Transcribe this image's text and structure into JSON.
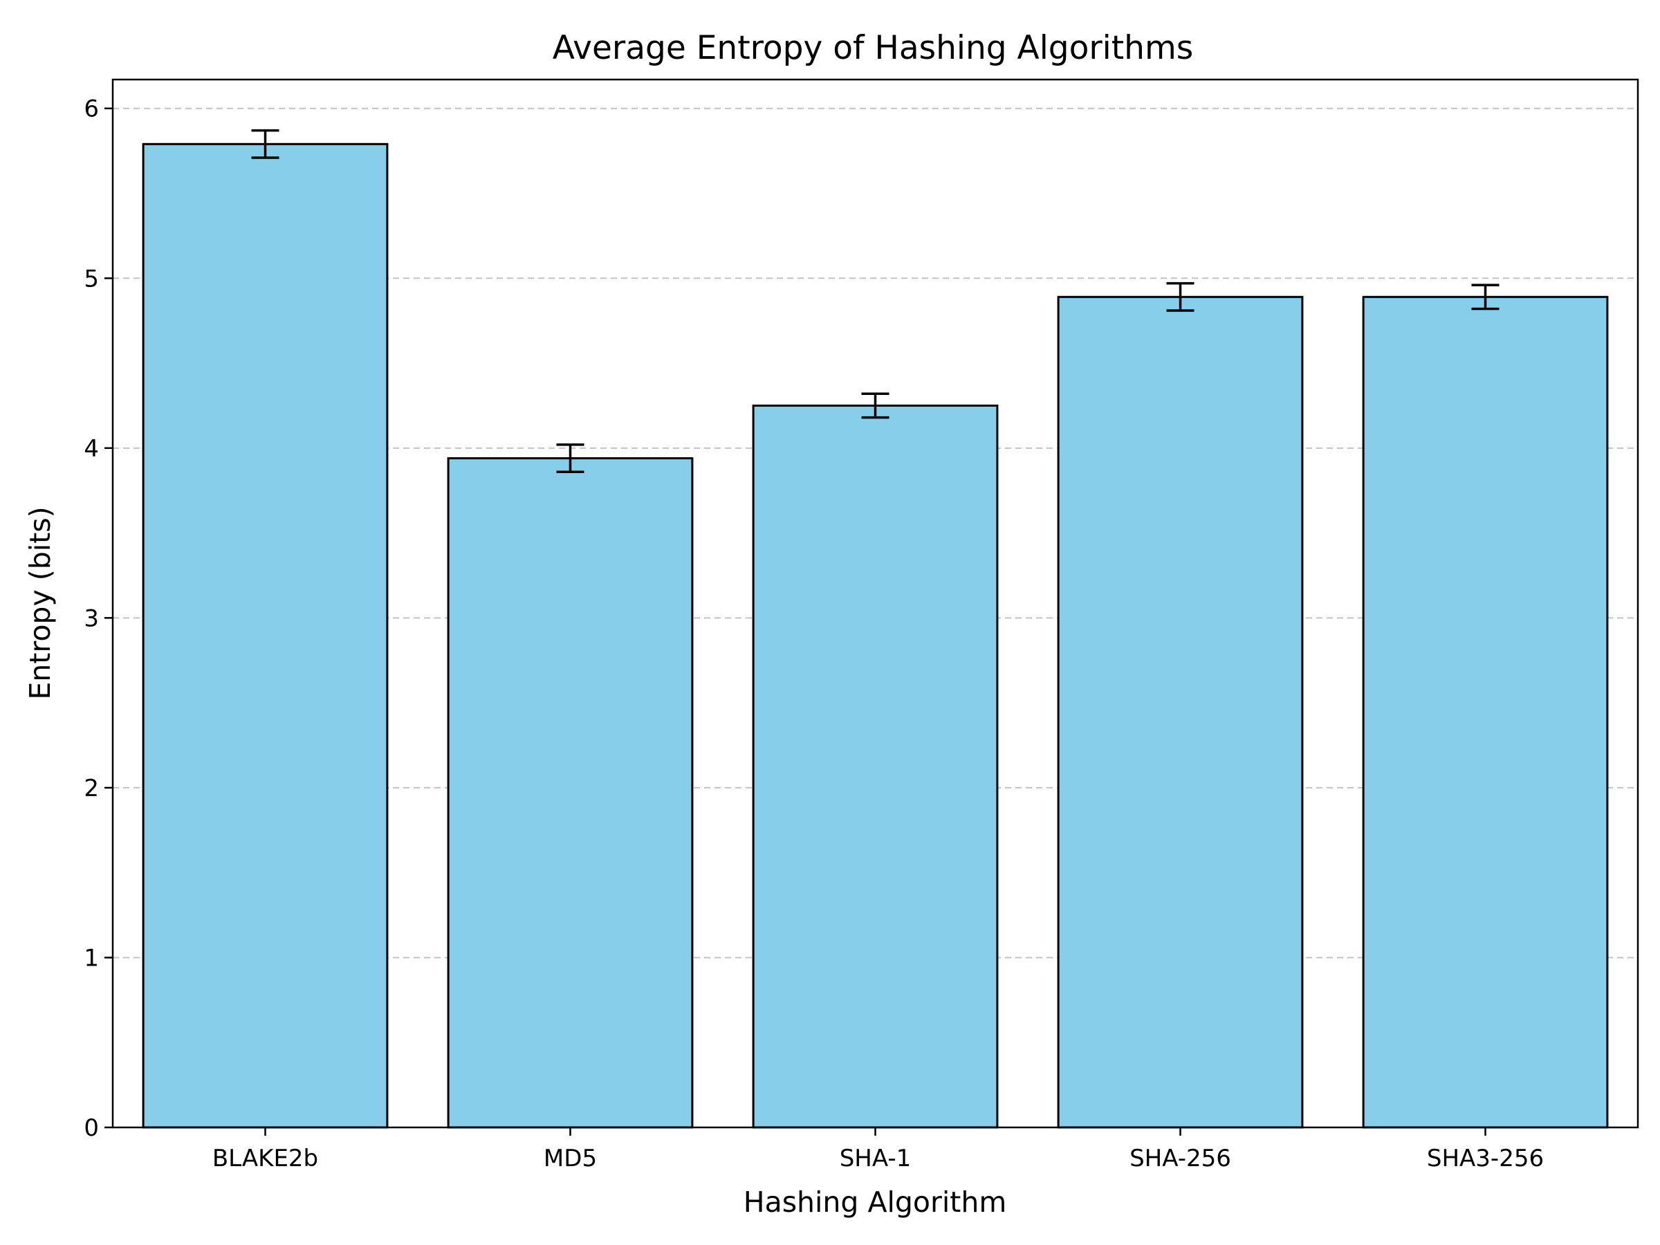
{
  "chart_data": {
    "type": "bar",
    "title": "Average Entropy of Hashing Algorithms",
    "xlabel": "Hashing Algorithm",
    "ylabel": "Entropy (bits)",
    "categories": [
      "BLAKE2b",
      "MD5",
      "SHA-1",
      "SHA-256",
      "SHA3-256"
    ],
    "values": [
      5.79,
      3.94,
      4.25,
      4.89,
      4.89
    ],
    "errors": [
      0.08,
      0.08,
      0.07,
      0.08,
      0.07
    ],
    "ylim": [
      0,
      6.17
    ],
    "yticks": [
      0,
      1,
      2,
      3,
      4,
      5,
      6
    ],
    "grid": "horizontal dashed",
    "bar_color": "#87ceeb",
    "edge_color": "#000000"
  }
}
